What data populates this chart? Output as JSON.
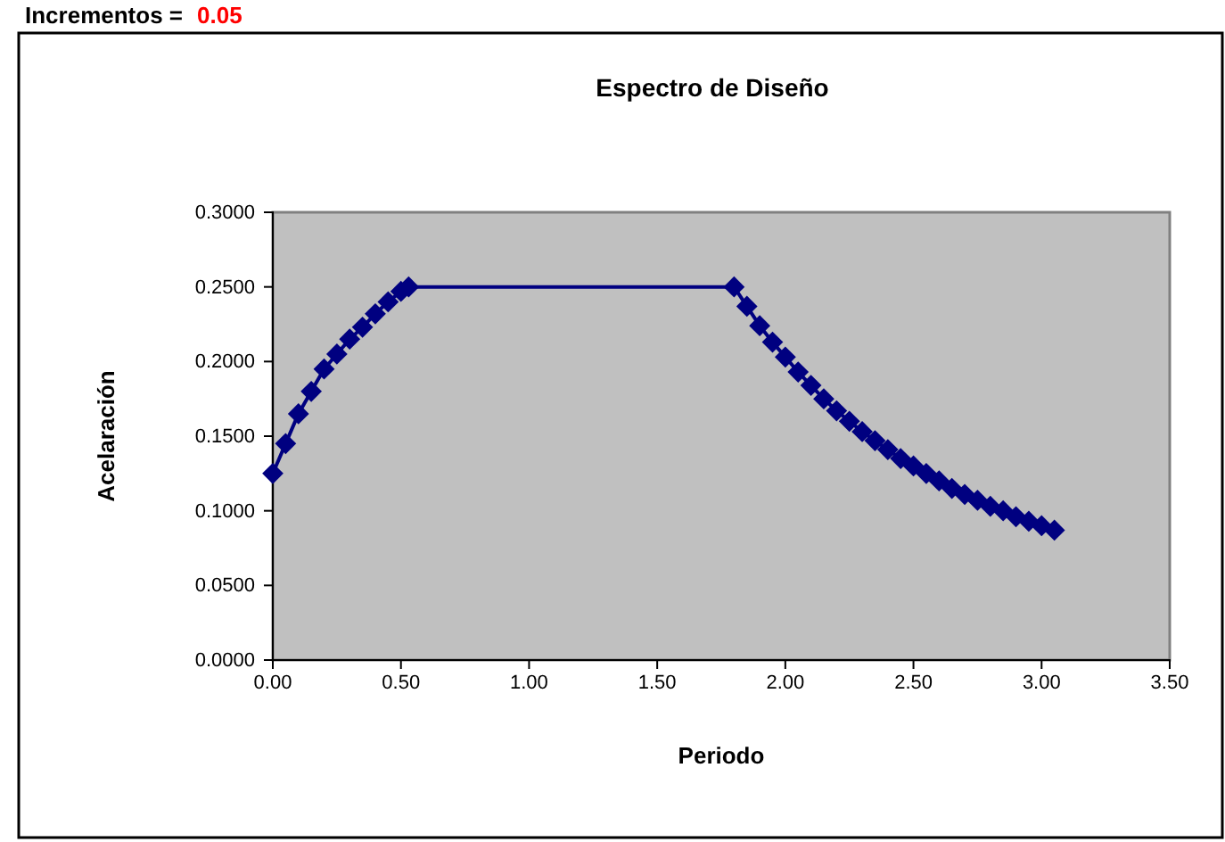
{
  "chart_data": {
    "type": "line",
    "title": "Espectro de Diseño",
    "xlabel": "Periodo",
    "ylabel": "Acelaración",
    "annotations": [
      "Incrementos =",
      "0.05"
    ],
    "x": [
      0,
      0.05,
      0.1,
      0.15,
      0.2,
      0.25,
      0.3,
      0.35,
      0.4,
      0.45,
      0.5,
      0.53,
      1.8,
      1.85,
      1.9,
      1.95,
      2.0,
      2.05,
      2.1,
      2.15,
      2.2,
      2.25,
      2.3,
      2.35,
      2.4,
      2.45,
      2.5,
      2.55,
      2.6,
      2.65,
      2.7,
      2.75,
      2.8,
      2.85,
      2.9,
      2.95,
      3.0,
      3.05
    ],
    "series": [
      {
        "color": "#000080",
        "values": [
          0.125,
          0.145,
          0.165,
          0.18,
          0.195,
          0.205,
          0.215,
          0.223,
          0.232,
          0.24,
          0.247,
          0.25,
          0.25,
          0.237,
          0.224,
          0.213,
          0.203,
          0.193,
          0.184,
          0.175,
          0.167,
          0.16,
          0.153,
          0.147,
          0.141,
          0.135,
          0.13,
          0.125,
          0.12,
          0.115,
          0.111,
          0.107,
          0.103,
          0.1,
          0.096,
          0.093,
          0.09,
          0.087
        ]
      }
    ],
    "xlim": [
      0,
      3.5
    ],
    "xticks": [
      {
        "value": 0,
        "label": "0.00"
      },
      {
        "value": 0.5,
        "label": "0.50"
      },
      {
        "value": 1,
        "label": "1.00"
      },
      {
        "value": 1.5,
        "label": "1.50"
      },
      {
        "value": 2,
        "label": "2.00"
      },
      {
        "value": 2.5,
        "label": "2.50"
      },
      {
        "value": 3,
        "label": "3.00"
      },
      {
        "value": 3.5,
        "label": "3.50"
      }
    ],
    "ylim": [
      0,
      0.3
    ],
    "yticks": [
      {
        "value": 0,
        "label": "0.0000"
      },
      {
        "value": 0.05,
        "label": "0.0500"
      },
      {
        "value": 0.1,
        "label": "0.1000"
      },
      {
        "value": 0.15,
        "label": "0.1500"
      },
      {
        "value": 0.2,
        "label": "0.2000"
      },
      {
        "value": 0.25,
        "label": "0.2500"
      },
      {
        "value": 0.3,
        "label": "0.3000"
      }
    ],
    "grid": false,
    "marker": "diamond",
    "line_style": "solid"
  }
}
